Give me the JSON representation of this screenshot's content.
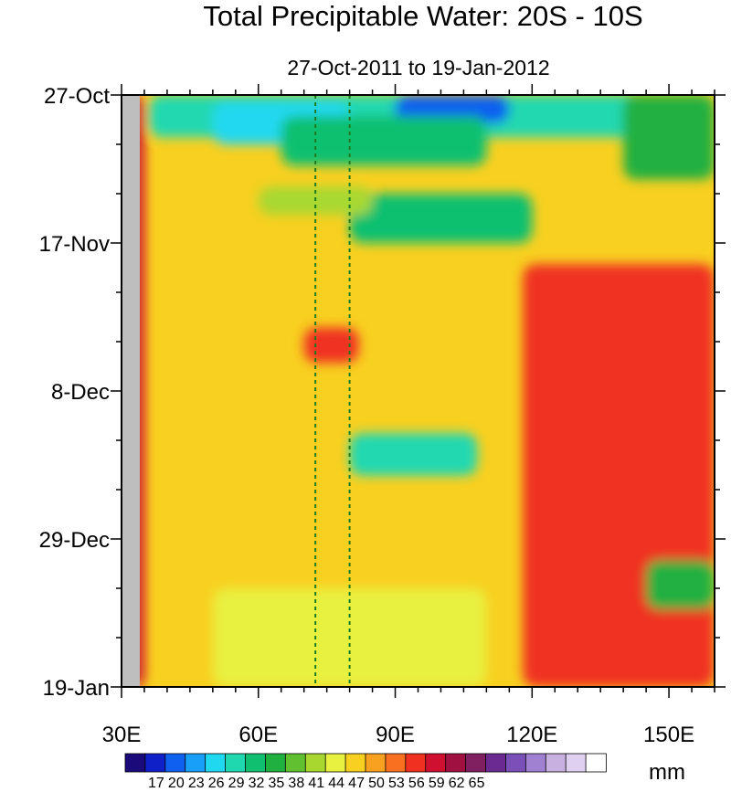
{
  "chart_data": {
    "type": "heatmap",
    "title": "Total Precipitable Water: 20S - 10S",
    "subtitle": "27-Oct-2011 to 19-Jan-2012",
    "units": "mm",
    "x_axis": {
      "label": "",
      "range": [
        30,
        160
      ],
      "ticks": [
        30,
        60,
        90,
        120,
        150
      ],
      "tick_labels": [
        "30E",
        "60E",
        "90E",
        "120E",
        "150E"
      ]
    },
    "y_axis": {
      "label": "",
      "range_days": [
        0,
        84
      ],
      "direction": "top-to-bottom",
      "ticks": [
        0,
        21,
        42,
        63,
        84
      ],
      "tick_labels": [
        "27-Oct",
        "17-Nov",
        "8-Dec",
        "29-Dec",
        "19-Jan"
      ]
    },
    "colorbar": {
      "placement": "bottom",
      "levels": [
        17,
        20,
        23,
        26,
        29,
        32,
        35,
        38,
        41,
        44,
        47,
        50,
        53,
        56,
        59,
        62,
        65
      ],
      "labels": [
        "17",
        "20",
        "23",
        "26",
        "29",
        "32",
        "35",
        "38",
        "41",
        "44",
        "47",
        "50",
        "53",
        "56",
        "59",
        "62",
        "65"
      ],
      "colors": [
        "#1a0a7a",
        "#1020c8",
        "#1060f0",
        "#18a0f8",
        "#20d8f0",
        "#20d8b0",
        "#10c070",
        "#20b040",
        "#60c030",
        "#a8d830",
        "#e8f040",
        "#f8d020",
        "#f8a020",
        "#f87020",
        "#f03020",
        "#d01030",
        "#a01040",
        "#802060",
        "#6a2a90",
        "#7a50b8",
        "#a080d0",
        "#c8b0e0",
        "#e0d0f0",
        "#ffffff"
      ]
    },
    "reference_lines": {
      "style": "dashed-green",
      "x": [
        72.5,
        80
      ]
    },
    "heatmap_field": {
      "description_of_values": "total precipitable water in mm",
      "background": 49,
      "features": [
        {
          "x0": 36,
          "x1": 160,
          "y0": 0,
          "y1": 6,
          "value": 30
        },
        {
          "x0": 90,
          "x1": 115,
          "y0": 0,
          "y1": 4,
          "value": 20
        },
        {
          "x0": 50,
          "x1": 80,
          "y0": 1,
          "y1": 7,
          "value": 26
        },
        {
          "x0": 65,
          "x1": 110,
          "y0": 3,
          "y1": 10,
          "value": 34
        },
        {
          "x0": 80,
          "x1": 120,
          "y0": 14,
          "y1": 21,
          "value": 34
        },
        {
          "x0": 60,
          "x1": 85,
          "y0": 13,
          "y1": 17,
          "value": 41
        },
        {
          "x0": 140,
          "x1": 160,
          "y0": 0,
          "y1": 12,
          "value": 36
        },
        {
          "x0": 70,
          "x1": 82,
          "y0": 33,
          "y1": 38,
          "value": 58
        },
        {
          "x0": 122,
          "x1": 145,
          "y0": 48,
          "y1": 60,
          "value": 61
        },
        {
          "x0": 118,
          "x1": 160,
          "y0": 24,
          "y1": 84,
          "value": 56
        },
        {
          "x0": 80,
          "x1": 108,
          "y0": 48,
          "y1": 54,
          "value": 30
        },
        {
          "x0": 145,
          "x1": 160,
          "y0": 66,
          "y1": 73,
          "value": 36
        },
        {
          "x0": 50,
          "x1": 110,
          "y0": 70,
          "y1": 84,
          "value": 44
        },
        {
          "x0": 32,
          "x1": 35,
          "y0": 0,
          "y1": 84,
          "value": 60
        }
      ],
      "missing_region": {
        "x0": 30,
        "x1": 34
      }
    }
  }
}
